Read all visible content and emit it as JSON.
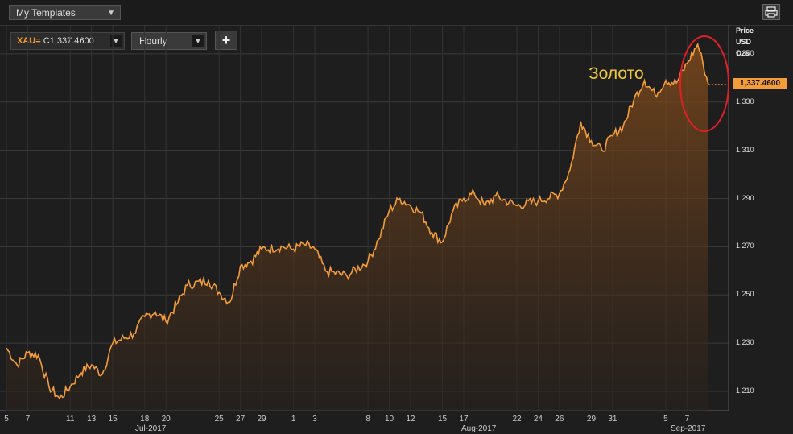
{
  "toolbar": {
    "template_label": "My Templates",
    "print_icon": "printer-icon"
  },
  "controls": {
    "ric_code": "XAU=",
    "ric_value": "C1,337.4600",
    "interval": "Hourly",
    "add_label": "+"
  },
  "axis_header": {
    "line1": "Price",
    "line2": "USD",
    "line3": "Ozs"
  },
  "annotation": "Золото",
  "colors": {
    "line": "#f39c3a",
    "annotation": "#f0c93a",
    "circle": "#e01f26",
    "background": "#1e1e1e"
  },
  "chart_data": {
    "type": "area",
    "title": "",
    "xlabel": "",
    "ylabel": "Price USD Ozs",
    "ylim": [
      1202,
      1362
    ],
    "y_ticks": [
      1210,
      1230,
      1250,
      1270,
      1290,
      1310,
      1330,
      1350
    ],
    "y_tick_labels": [
      "1,210",
      "1,230",
      "1,250",
      "1,270",
      "1,290",
      "1,310",
      "1,330",
      "1,350"
    ],
    "last_price": 1337.46,
    "last_price_label": "1,337.4600",
    "grid": true,
    "x_ticks": [
      {
        "label": "5",
        "date": "2017-07-05"
      },
      {
        "label": "7",
        "date": "2017-07-07"
      },
      {
        "label": "11",
        "date": "2017-07-11"
      },
      {
        "label": "13",
        "date": "2017-07-13"
      },
      {
        "label": "15",
        "date": "2017-07-15"
      },
      {
        "label": "18",
        "date": "2017-07-18"
      },
      {
        "label": "20",
        "date": "2017-07-20"
      },
      {
        "label": "25",
        "date": "2017-07-25"
      },
      {
        "label": "27",
        "date": "2017-07-27"
      },
      {
        "label": "29",
        "date": "2017-07-29"
      },
      {
        "label": "1",
        "date": "2017-08-01"
      },
      {
        "label": "3",
        "date": "2017-08-03"
      },
      {
        "label": "8",
        "date": "2017-08-08"
      },
      {
        "label": "10",
        "date": "2017-08-10"
      },
      {
        "label": "12",
        "date": "2017-08-12"
      },
      {
        "label": "15",
        "date": "2017-08-15"
      },
      {
        "label": "17",
        "date": "2017-08-17"
      },
      {
        "label": "22",
        "date": "2017-08-22"
      },
      {
        "label": "24",
        "date": "2017-08-24"
      },
      {
        "label": "26",
        "date": "2017-08-26"
      },
      {
        "label": "29",
        "date": "2017-08-29"
      },
      {
        "label": "31",
        "date": "2017-08-31"
      },
      {
        "label": "5",
        "date": "2017-09-05"
      },
      {
        "label": "7",
        "date": "2017-09-07"
      }
    ],
    "x_months": [
      "Jul-2017",
      "Aug-2017",
      "Sep-2017"
    ],
    "series": [
      {
        "points": [
          [
            "2017-07-05",
            1228
          ],
          [
            "2017-07-06",
            1221
          ],
          [
            "2017-07-07",
            1226
          ],
          [
            "2017-07-08",
            1225
          ],
          [
            "2017-07-09",
            1212
          ],
          [
            "2017-07-10",
            1207
          ],
          [
            "2017-07-11",
            1212
          ],
          [
            "2017-07-12",
            1218
          ],
          [
            "2017-07-13",
            1221
          ],
          [
            "2017-07-14",
            1217
          ],
          [
            "2017-07-15",
            1230
          ],
          [
            "2017-07-17",
            1234
          ],
          [
            "2017-07-18",
            1241
          ],
          [
            "2017-07-19",
            1243
          ],
          [
            "2017-07-20",
            1239
          ],
          [
            "2017-07-21",
            1246
          ],
          [
            "2017-07-22",
            1254
          ],
          [
            "2017-07-24",
            1256
          ],
          [
            "2017-07-25",
            1251
          ],
          [
            "2017-07-26",
            1247
          ],
          [
            "2017-07-27",
            1262
          ],
          [
            "2017-07-28",
            1264
          ],
          [
            "2017-07-29",
            1269
          ],
          [
            "2017-07-31",
            1270
          ],
          [
            "2017-08-01",
            1269
          ],
          [
            "2017-08-02",
            1271
          ],
          [
            "2017-08-03",
            1269
          ],
          [
            "2017-08-04",
            1260
          ],
          [
            "2017-08-06",
            1258
          ],
          [
            "2017-08-08",
            1264
          ],
          [
            "2017-08-09",
            1273
          ],
          [
            "2017-08-10",
            1285
          ],
          [
            "2017-08-11",
            1290
          ],
          [
            "2017-08-12",
            1287
          ],
          [
            "2017-08-13",
            1284
          ],
          [
            "2017-08-14",
            1276
          ],
          [
            "2017-08-15",
            1272
          ],
          [
            "2017-08-16",
            1285
          ],
          [
            "2017-08-17",
            1290
          ],
          [
            "2017-08-18",
            1292
          ],
          [
            "2017-08-19",
            1287
          ],
          [
            "2017-08-20",
            1291
          ],
          [
            "2017-08-22",
            1287
          ],
          [
            "2017-08-24",
            1289
          ],
          [
            "2017-08-26",
            1292
          ],
          [
            "2017-08-27",
            1302
          ],
          [
            "2017-08-28",
            1322
          ],
          [
            "2017-08-29",
            1314
          ],
          [
            "2017-08-30",
            1310
          ],
          [
            "2017-08-31",
            1316
          ],
          [
            "2017-09-01",
            1320
          ],
          [
            "2017-09-02",
            1331
          ],
          [
            "2017-09-03",
            1339
          ],
          [
            "2017-09-04",
            1333
          ],
          [
            "2017-09-05",
            1339
          ],
          [
            "2017-09-06",
            1338
          ],
          [
            "2017-09-07",
            1346
          ],
          [
            "2017-09-08",
            1354
          ],
          [
            "2017-09-08T12:00",
            1346
          ],
          [
            "2017-09-09",
            1337.46
          ]
        ]
      }
    ]
  }
}
